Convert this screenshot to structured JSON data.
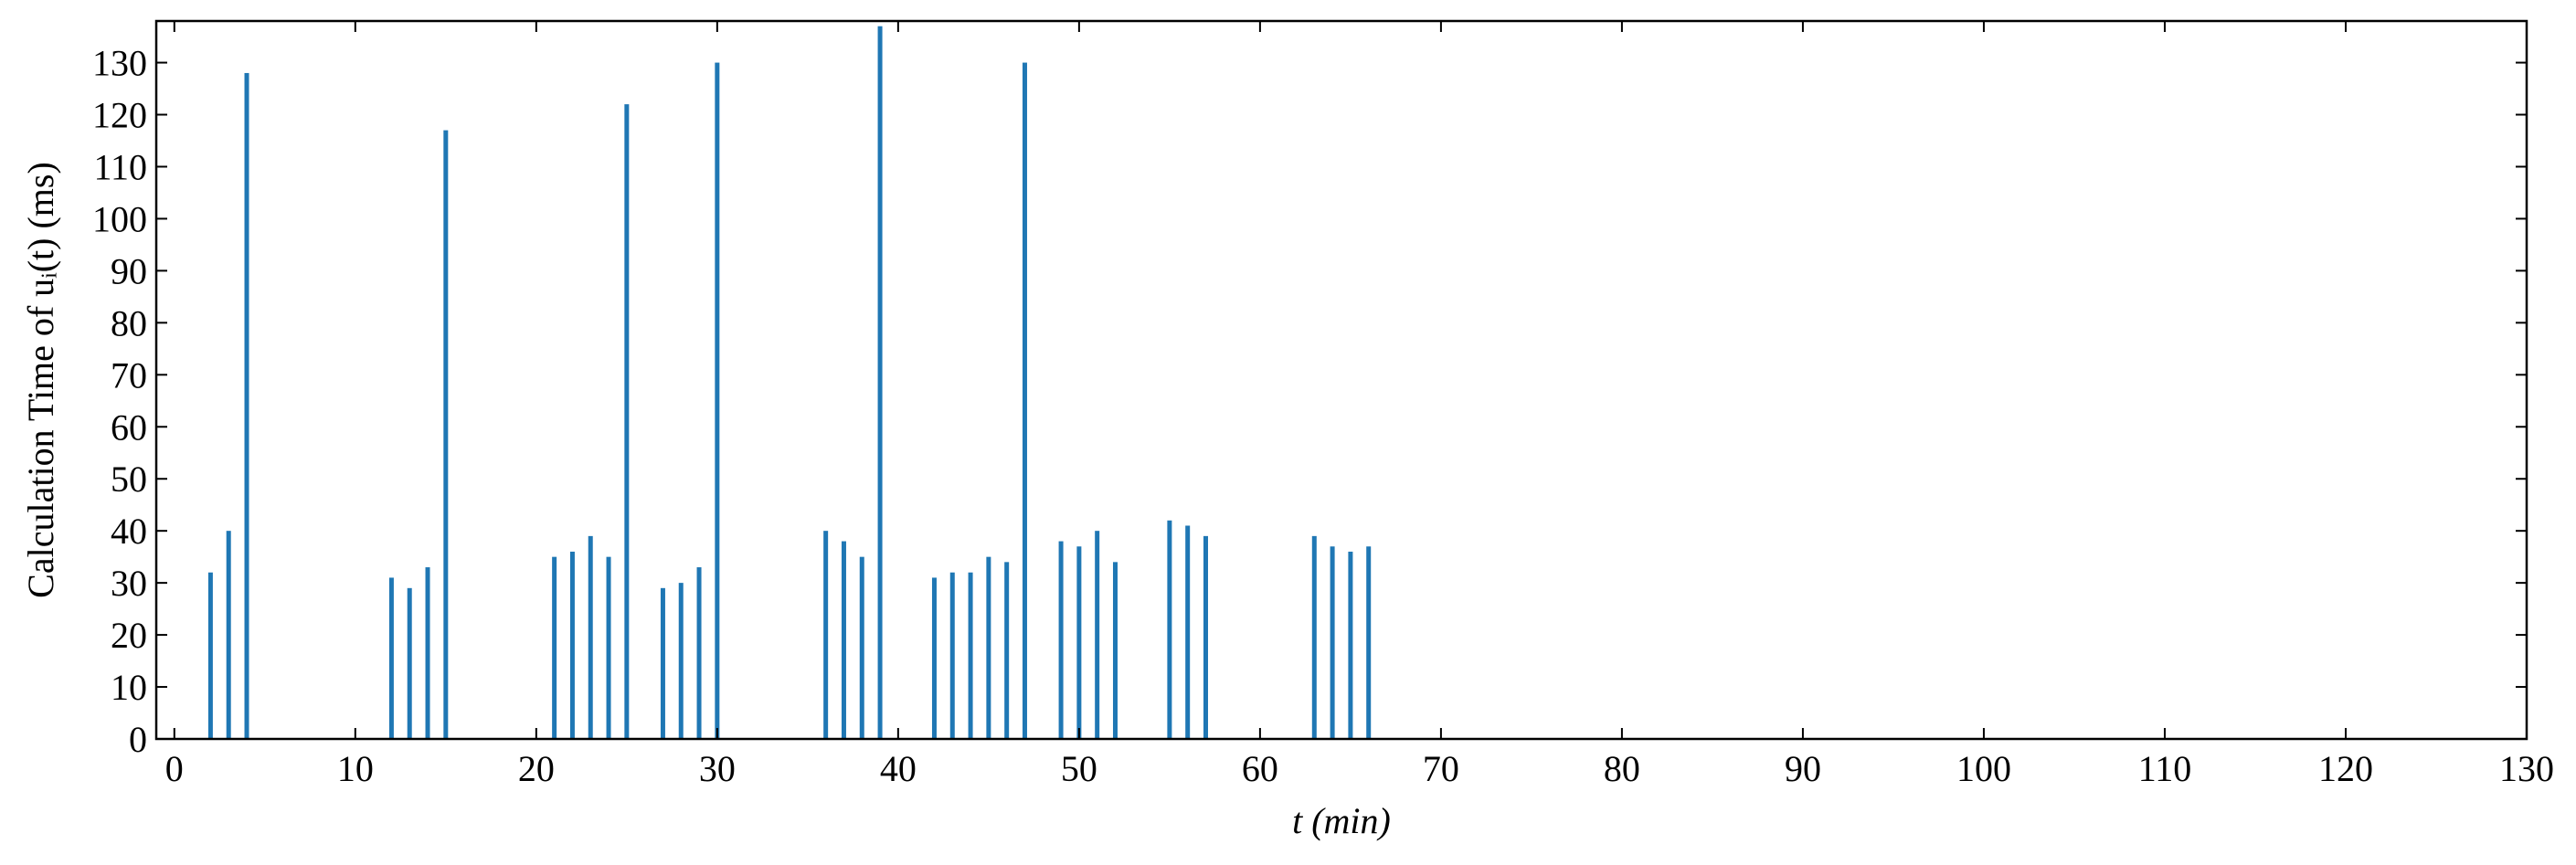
{
  "chart_data": {
    "type": "bar",
    "xlabel": "t (min)",
    "ylabel": "Calculation Time of uᵢ(t) (ms)",
    "x": [
      2,
      3,
      4,
      12,
      13,
      14,
      15,
      21,
      22,
      23,
      24,
      25,
      27,
      28,
      29,
      30,
      36,
      37,
      38,
      39,
      42,
      43,
      44,
      45,
      46,
      47,
      49,
      50,
      51,
      52,
      55,
      56,
      57,
      63,
      64,
      65,
      66
    ],
    "values": [
      32,
      40,
      128,
      31,
      29,
      33,
      117,
      35,
      36,
      39,
      35,
      122,
      29,
      30,
      33,
      130,
      40,
      38,
      35,
      137,
      31,
      32,
      32,
      35,
      34,
      130,
      38,
      37,
      40,
      34,
      42,
      41,
      39,
      39,
      37,
      36,
      37
    ],
    "color": "#1f77b4",
    "xlim": [
      -1,
      130
    ],
    "xticks": [
      0,
      10,
      20,
      30,
      40,
      50,
      60,
      70,
      80,
      90,
      100,
      110,
      120,
      130
    ],
    "ylim": [
      0,
      138
    ],
    "yticks": [
      0,
      10,
      20,
      30,
      40,
      50,
      60,
      70,
      80,
      90,
      100,
      110,
      120,
      130
    ]
  }
}
